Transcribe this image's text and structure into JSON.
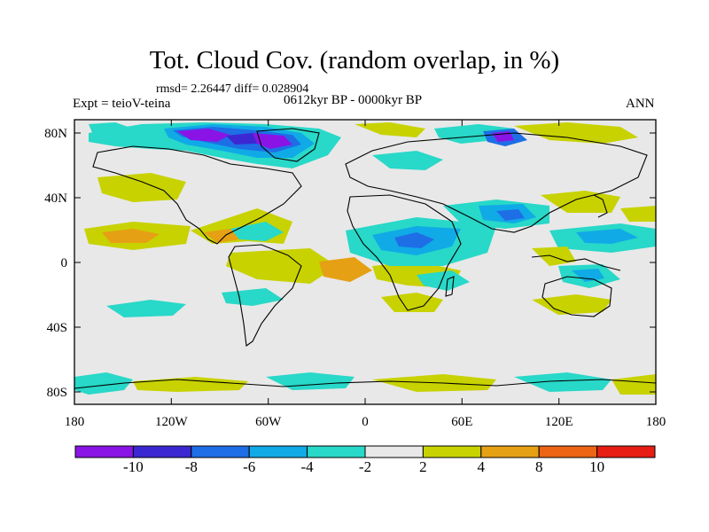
{
  "title": "Tot. Cloud Cov. (random overlap, in %)",
  "stats_text": "rmsd= 2.26447 diff= 0.028904",
  "experiment_text": "Expt = teioV-teina",
  "period_text": "0612kyr BP - 0000kyr BP",
  "season_text": "ANN",
  "lat_labels": [
    "80N",
    "40N",
    "0",
    "40S",
    "80S"
  ],
  "lon_labels": [
    "180",
    "120W",
    "60W",
    "0",
    "60E",
    "120E",
    "180"
  ],
  "colorbar": {
    "labels": [
      "-10",
      "-8",
      "-6",
      "-4",
      "-2",
      "2",
      "4",
      "8",
      "10"
    ],
    "colors": [
      "#8a14e6",
      "#3c28d2",
      "#1e6ee6",
      "#10aae6",
      "#28d8c8",
      "#e8e8e8",
      "#c8d200",
      "#e6a014",
      "#ec6414",
      "#e61e14"
    ]
  },
  "colors": {
    "land_fill": "#e8e8e8",
    "coast": "#000000"
  }
}
